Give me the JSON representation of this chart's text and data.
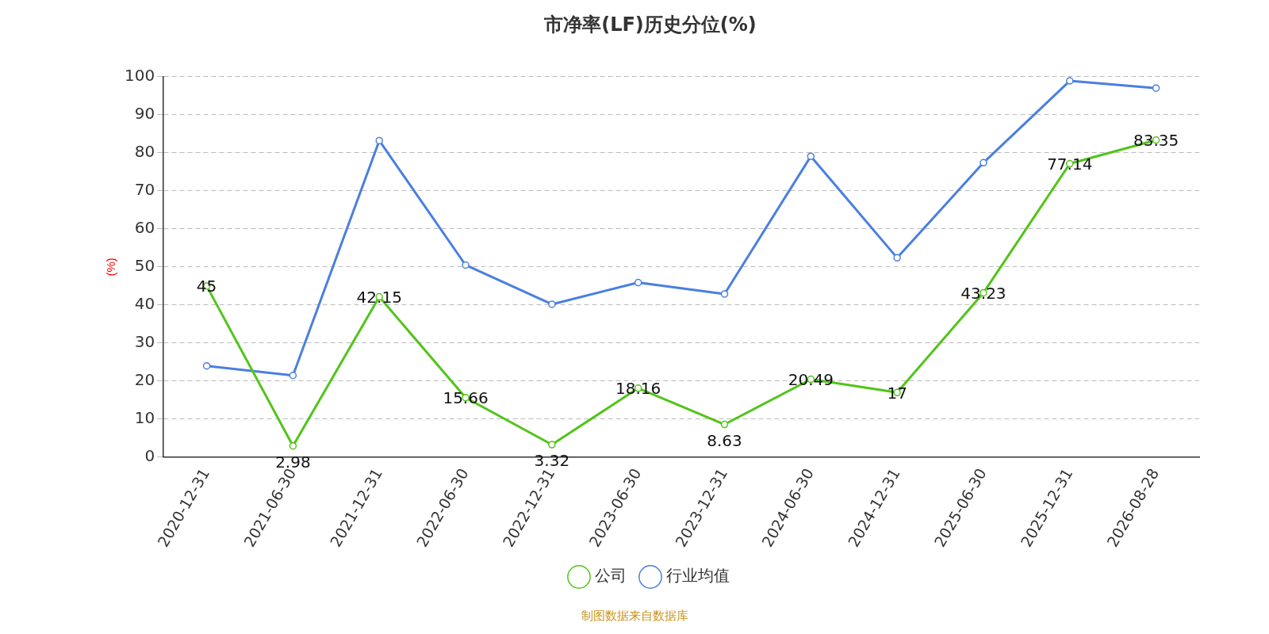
{
  "chart_data": {
    "type": "line",
    "title": "市净率(LF)历史分位(%)",
    "ylabel": "(%)",
    "categories": [
      "2020-12-31",
      "2021-06-30",
      "2021-12-31",
      "2022-06-30",
      "2022-12-31",
      "2023-06-30",
      "2023-12-31",
      "2024-06-30",
      "2024-12-31",
      "2025-06-30",
      "2025-12-31",
      "2026-08-28"
    ],
    "series": [
      {
        "name": "公司",
        "color": "#52c41a",
        "values": [
          45,
          2.98,
          42.15,
          15.66,
          3.32,
          18.16,
          8.63,
          20.49,
          17,
          43.23,
          77.14,
          83.35
        ],
        "value_labels": [
          "45",
          "2.98",
          "42.15",
          "15.66",
          "3.32",
          "18.16",
          "8.63",
          "20.49",
          "17",
          "43.23",
          "77.14",
          "83.35"
        ]
      },
      {
        "name": "行业均值",
        "color": "#4a7fe0",
        "values": [
          24,
          21.5,
          83.2,
          50.5,
          40.2,
          45.9,
          42.9,
          79.1,
          52.4,
          77.4,
          98.9,
          97
        ]
      }
    ],
    "ylim": [
      0,
      100
    ],
    "yticks": [
      0,
      10,
      20,
      30,
      40,
      50,
      60,
      70,
      80,
      90,
      100
    ],
    "grid": "y",
    "legend": "bottom",
    "marker": "circle",
    "annotations": [
      "制图数据来自数据库"
    ]
  }
}
